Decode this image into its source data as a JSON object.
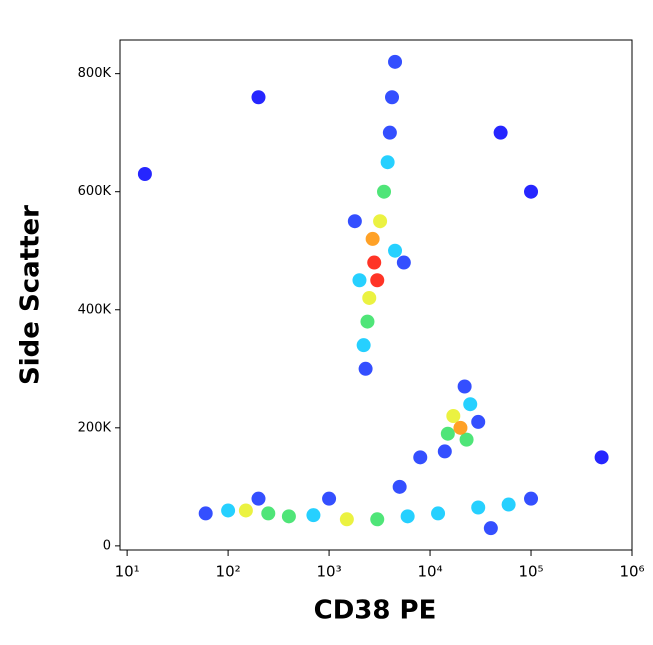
{
  "chart_data": {
    "type": "scatter",
    "xlabel": "CD38 PE",
    "ylabel": "Side Scatter",
    "xscale": "log",
    "xlim": [
      8.5,
      1000000
    ],
    "xticks": [
      {
        "value": 10,
        "label": "10¹"
      },
      {
        "value": 100,
        "label": "10²"
      },
      {
        "value": 1000,
        "label": "10³"
      },
      {
        "value": 10000,
        "label": "10⁴"
      },
      {
        "value": 100000,
        "label": "10⁵"
      },
      {
        "value": 1000000,
        "label": "10⁶"
      }
    ],
    "ylim": [
      -7000,
      857000
    ],
    "yticks": [
      0,
      {
        "value": 200000,
        "label": "200K"
      },
      {
        "value": 400000,
        "label": "400K"
      },
      {
        "value": 600000,
        "label": "600K"
      },
      {
        "value": 800000,
        "label": "800K"
      }
    ],
    "x": [
      15,
      200,
      50000,
      100000,
      500000,
      4000,
      2300,
      4200,
      4500,
      1800,
      5500,
      14000,
      30000,
      22000,
      60,
      100000,
      200,
      1000,
      5000,
      8000,
      40000,
      3800,
      2200,
      2000,
      4500,
      25000,
      100,
      700,
      6000,
      12000,
      30000,
      60000,
      3500,
      2400,
      23000,
      15000,
      250,
      400,
      3000,
      3200,
      2500,
      17000,
      150,
      1500,
      2700,
      20000,
      2800,
      3000
    ],
    "y": [
      630000,
      760000,
      700000,
      600000,
      150000,
      700000,
      300000,
      760000,
      820000,
      550000,
      480000,
      160000,
      210000,
      270000,
      55000,
      80000,
      80000,
      80000,
      100000,
      150000,
      30000,
      650000,
      340000,
      450000,
      500000,
      240000,
      60000,
      52000,
      50000,
      55000,
      65000,
      70000,
      600000,
      380000,
      180000,
      190000,
      55000,
      50000,
      45000,
      550000,
      420000,
      220000,
      60000,
      45000,
      520000,
      200000,
      480000,
      450000
    ],
    "colors": [
      "#0000ff",
      "#0000ff",
      "#0000ff",
      "#0000ff",
      "#0000ff",
      "#1030ff",
      "#1030ff",
      "#1030ff",
      "#1030ff",
      "#1030ff",
      "#1030ff",
      "#1030ff",
      "#1030ff",
      "#1030ff",
      "#1030ff",
      "#1030ff",
      "#1030ff",
      "#1030ff",
      "#1030ff",
      "#1030ff",
      "#1030ff",
      "#00c8ff",
      "#00c8ff",
      "#00c8ff",
      "#00c8ff",
      "#00c8ff",
      "#00c8ff",
      "#00c8ff",
      "#00c8ff",
      "#00c8ff",
      "#00c8ff",
      "#00c8ff",
      "#30e060",
      "#30e060",
      "#30e060",
      "#30e060",
      "#30e060",
      "#30e060",
      "#30e060",
      "#e8f020",
      "#e8f020",
      "#e8f020",
      "#e8f020",
      "#e8f020",
      "#ff9000",
      "#ff9000",
      "#ff1000",
      "#ff1000"
    ]
  }
}
